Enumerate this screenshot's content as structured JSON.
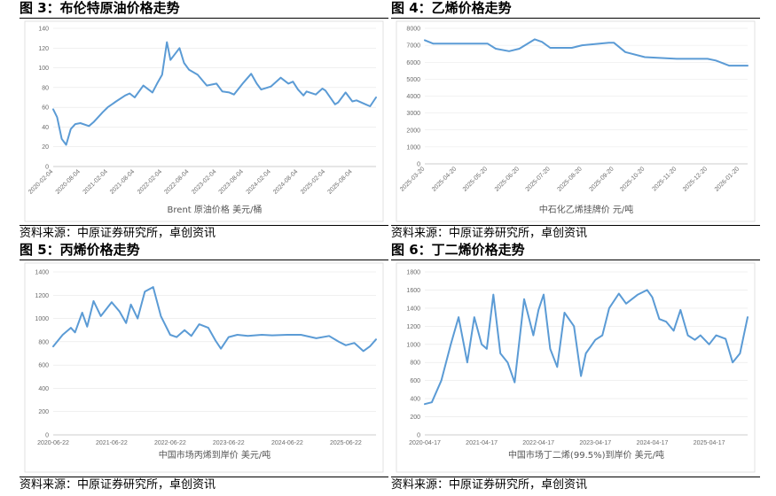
{
  "panels": [
    {
      "title": "图 3：布伦特原油价格走势",
      "source": "资料来源：中原证券研究所，卓创资讯"
    },
    {
      "title": "图 4：乙烯价格走势",
      "source": "资料来源：中原证券研究所，卓创资讯"
    },
    {
      "title": "图 5：丙烯价格走势",
      "source": "资料来源：中原证券研究所，卓创资讯"
    },
    {
      "title": "图 6：丁二烯价格走势",
      "source": "资料来源：中原证券研究所，卓创资讯"
    }
  ],
  "colors": {
    "series": "#5b9bd5"
  },
  "chart_data": [
    {
      "type": "line",
      "xlabel": "Brent 原油价格 美元/桶",
      "ylim": [
        0,
        140
      ],
      "yticks": [
        0,
        20,
        40,
        60,
        80,
        100,
        120,
        140
      ],
      "x_tick_labels": [
        "2020-02-04",
        "2020-08-04",
        "2021-02-04",
        "2021-08-04",
        "2022-02-04",
        "2022-08-04",
        "2023-02-04",
        "2023-08-04",
        "2024-02-04",
        "2024-08-04",
        "2025-02-04",
        "2025-08-04"
      ],
      "x": [
        "2020-02-04",
        "2020-03-01",
        "2020-04-01",
        "2020-05-01",
        "2020-06-01",
        "2020-07-01",
        "2020-08-04",
        "2020-10-01",
        "2020-11-01",
        "2021-01-01",
        "2021-02-04",
        "2021-04-01",
        "2021-06-01",
        "2021-07-01",
        "2021-08-04",
        "2021-10-01",
        "2021-12-01",
        "2022-01-01",
        "2022-02-04",
        "2022-03-08",
        "2022-04-01",
        "2022-06-01",
        "2022-07-01",
        "2022-08-04",
        "2022-10-01",
        "2022-12-01",
        "2023-02-04",
        "2023-03-15",
        "2023-05-01",
        "2023-06-01",
        "2023-08-04",
        "2023-09-25",
        "2023-11-01",
        "2023-12-01",
        "2024-02-04",
        "2024-04-10",
        "2024-06-01",
        "2024-07-01",
        "2024-08-04",
        "2024-09-10",
        "2024-10-01",
        "2024-12-01",
        "2025-01-15",
        "2025-02-04",
        "2025-04-10",
        "2025-05-01",
        "2025-06-20",
        "2025-08-04",
        "2025-09-01",
        "2025-11-01",
        "2025-12-01",
        "2026-01-10"
      ],
      "values": [
        58,
        50,
        28,
        22,
        38,
        43,
        44,
        41,
        45,
        55,
        60,
        66,
        72,
        74,
        70,
        82,
        75,
        84,
        93,
        126,
        108,
        120,
        105,
        98,
        93,
        82,
        84,
        76,
        75,
        73,
        85,
        94,
        84,
        78,
        81,
        90,
        84,
        86,
        78,
        72,
        76,
        73,
        79,
        77,
        63,
        65,
        75,
        66,
        67,
        63,
        61,
        70
      ]
    },
    {
      "type": "line",
      "xlabel": "中石化乙烯挂牌价 元/吨",
      "ylim": [
        0,
        8000
      ],
      "yticks": [
        0,
        1000,
        2000,
        3000,
        4000,
        5000,
        6000,
        7000,
        8000
      ],
      "x_tick_labels": [
        "2025-03-20",
        "2025-04-20",
        "2025-05-20",
        "2025-06-20",
        "2025-07-20",
        "2025-08-20",
        "2025-09-20",
        "2025-10-20",
        "2025-11-20",
        "2025-12-20",
        "2026-01-20"
      ],
      "x": [
        "2025-03-20",
        "2025-03-28",
        "2025-04-20",
        "2025-05-20",
        "2025-05-28",
        "2025-06-10",
        "2025-06-20",
        "2025-07-05",
        "2025-07-12",
        "2025-07-20",
        "2025-08-10",
        "2025-08-20",
        "2025-09-15",
        "2025-09-20",
        "2025-10-01",
        "2025-10-20",
        "2025-11-20",
        "2025-12-20",
        "2025-12-28",
        "2026-01-10",
        "2026-01-20",
        "2026-01-28"
      ],
      "values": [
        7300,
        7100,
        7100,
        7100,
        6800,
        6650,
        6800,
        7350,
        7200,
        6850,
        6850,
        7000,
        7150,
        7150,
        6600,
        6300,
        6200,
        6200,
        6100,
        5800,
        5800,
        5800
      ]
    },
    {
      "type": "line",
      "xlabel": "中国市场丙烯到岸价 美元/吨",
      "ylim": [
        0,
        1400
      ],
      "yticks": [
        0,
        200,
        400,
        600,
        800,
        1000,
        1200,
        1400
      ],
      "x_tick_labels": [
        "2020-06-22",
        "2021-06-22",
        "2022-06-22",
        "2023-06-22",
        "2024-06-22",
        "2025-06-22"
      ],
      "x": [
        "2020-06-22",
        "2020-08-20",
        "2020-10-10",
        "2020-11-05",
        "2020-12-20",
        "2021-01-20",
        "2021-03-01",
        "2021-04-15",
        "2021-06-22",
        "2021-08-10",
        "2021-09-20",
        "2021-10-20",
        "2021-12-01",
        "2022-01-15",
        "2022-03-08",
        "2022-04-25",
        "2022-06-22",
        "2022-08-01",
        "2022-09-20",
        "2022-11-01",
        "2022-12-20",
        "2023-02-15",
        "2023-04-01",
        "2023-05-05",
        "2023-06-22",
        "2023-08-15",
        "2023-10-20",
        "2024-01-15",
        "2024-03-20",
        "2024-06-22",
        "2024-09-15",
        "2024-12-20",
        "2025-03-10",
        "2025-05-10",
        "2025-06-22",
        "2025-08-15",
        "2025-10-10",
        "2025-11-20",
        "2025-12-28"
      ],
      "values": [
        760,
        860,
        920,
        880,
        1050,
        930,
        1150,
        1020,
        1140,
        1060,
        960,
        1120,
        1000,
        1230,
        1270,
        1020,
        860,
        840,
        900,
        850,
        950,
        920,
        810,
        740,
        840,
        860,
        850,
        860,
        855,
        860,
        860,
        830,
        850,
        800,
        770,
        790,
        720,
        760,
        820
      ]
    },
    {
      "type": "line",
      "xlabel": "中国市场丁二烯(99.5%)到岸价 美元/吨",
      "ylim": [
        0,
        1800
      ],
      "yticks": [
        0,
        200,
        400,
        600,
        800,
        1000,
        1200,
        1400,
        1600,
        1800
      ],
      "x_tick_labels": [
        "2020-04-17",
        "2021-04-17",
        "2022-04-17",
        "2023-04-17",
        "2024-04-17",
        "2025-04-17"
      ],
      "x": [
        "2020-04-17",
        "2020-06-01",
        "2020-08-01",
        "2020-10-01",
        "2020-11-20",
        "2021-01-15",
        "2021-03-01",
        "2021-04-17",
        "2021-05-20",
        "2021-07-01",
        "2021-08-15",
        "2021-10-01",
        "2021-11-15",
        "2022-01-15",
        "2022-03-15",
        "2022-04-17",
        "2022-05-20",
        "2022-07-01",
        "2022-08-15",
        "2022-10-01",
        "2022-12-01",
        "2023-01-15",
        "2023-02-15",
        "2023-04-17",
        "2023-06-01",
        "2023-07-15",
        "2023-09-15",
        "2023-11-01",
        "2024-01-15",
        "2024-03-15",
        "2024-04-17",
        "2024-06-01",
        "2024-07-15",
        "2024-09-01",
        "2024-10-15",
        "2024-12-01",
        "2025-01-15",
        "2025-02-20",
        "2025-04-17",
        "2025-06-01",
        "2025-08-01",
        "2025-09-15",
        "2025-11-01",
        "2025-12-20"
      ],
      "values": [
        340,
        360,
        600,
        1000,
        1300,
        800,
        1300,
        1000,
        950,
        1550,
        900,
        800,
        580,
        1500,
        1100,
        1380,
        1550,
        950,
        750,
        1350,
        1200,
        650,
        900,
        1050,
        1100,
        1400,
        1560,
        1450,
        1550,
        1600,
        1520,
        1280,
        1250,
        1150,
        1380,
        1100,
        1050,
        1100,
        1000,
        1100,
        1060,
        800,
        900,
        1300
      ]
    }
  ]
}
